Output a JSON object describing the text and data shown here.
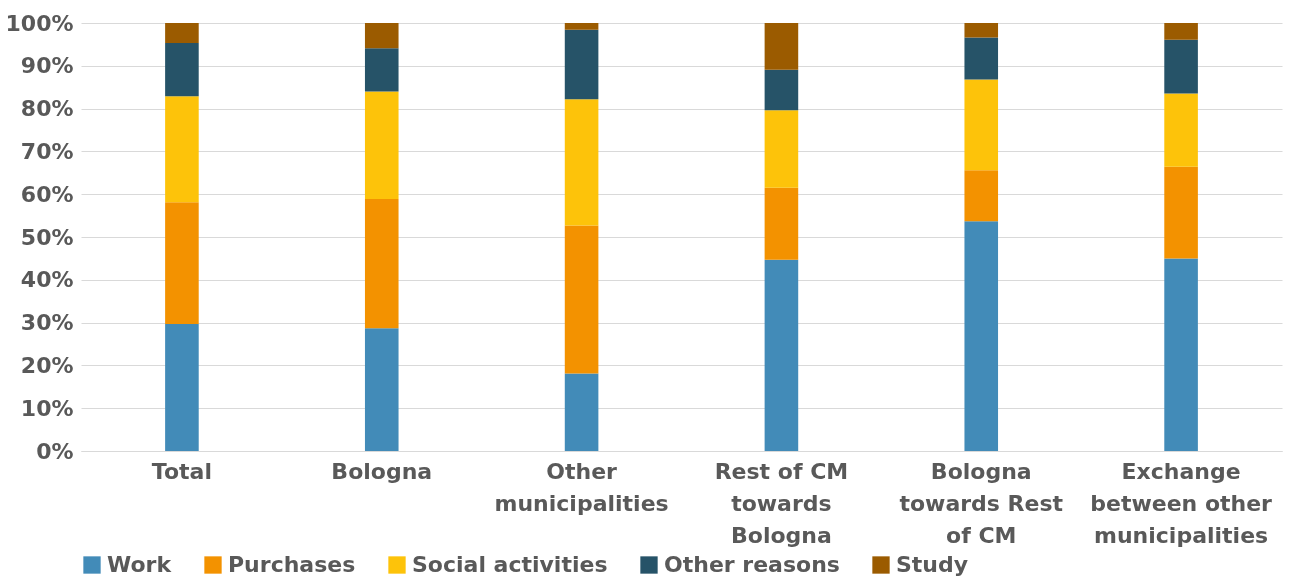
{
  "chart_data": {
    "type": "bar",
    "stacked": true,
    "categories": [
      "Total",
      "Bologna",
      "Other municipalities",
      "Rest of CM towards Bologna",
      "Bologna towards Rest of CM",
      "Exchange between other municipalities"
    ],
    "series": [
      {
        "name": "Work",
        "color": "#428bb8",
        "values": [
          29.7,
          28.7,
          18.1,
          44.7,
          53.7,
          45.0
        ]
      },
      {
        "name": "Purchases",
        "color": "#f39200",
        "values": [
          28.4,
          30.2,
          34.6,
          16.8,
          11.9,
          21.4
        ]
      },
      {
        "name": "Social activities",
        "color": "#fdc30a",
        "values": [
          24.8,
          25.1,
          29.5,
          18.1,
          21.2,
          17.1
        ]
      },
      {
        "name": "Other reasons",
        "color": "#265368",
        "values": [
          12.4,
          10.1,
          16.2,
          9.5,
          9.8,
          12.6
        ]
      },
      {
        "name": "Study",
        "color": "#9b5b00",
        "values": [
          4.7,
          5.9,
          1.6,
          10.9,
          3.4,
          3.9
        ]
      }
    ],
    "ylim": [
      0,
      100
    ],
    "yticks": [
      {
        "value": 0,
        "label": "0%"
      },
      {
        "value": 10,
        "label": "10%"
      },
      {
        "value": 20,
        "label": "20%"
      },
      {
        "value": 30,
        "label": "30%"
      },
      {
        "value": 40,
        "label": "40%"
      },
      {
        "value": 50,
        "label": "50%"
      },
      {
        "value": 60,
        "label": "60%"
      },
      {
        "value": 70,
        "label": "70%"
      },
      {
        "value": 80,
        "label": "80%"
      },
      {
        "value": 90,
        "label": "90%"
      },
      {
        "value": 100,
        "label": "100%"
      }
    ],
    "grid": "y",
    "legend": "bottom"
  }
}
